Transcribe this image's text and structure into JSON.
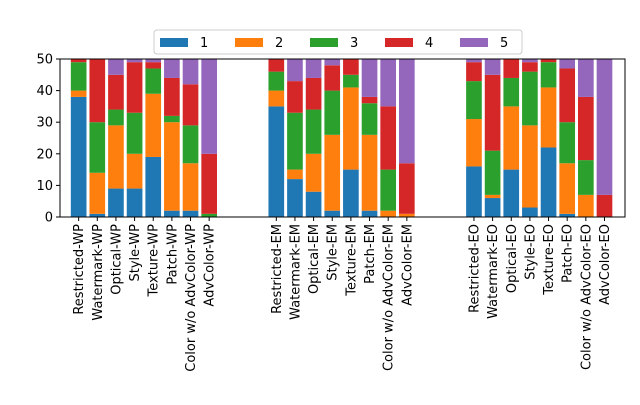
{
  "chart_data": {
    "type": "bar",
    "stacked": true,
    "title": "",
    "xlabel": "",
    "ylabel": "",
    "ylim": [
      0,
      50
    ],
    "yticks": [
      0,
      10,
      20,
      30,
      40,
      50
    ],
    "grid": false,
    "legend_position": "top-center",
    "groups": [
      "WP",
      "EM",
      "EO"
    ],
    "categories": [
      "Restricted-WP",
      "Watermark-WP",
      "Optical-WP",
      "Style-WP",
      "Texture-WP",
      "Patch-WP",
      "Color w/o AdvColor-WP",
      "AdvColor-WP",
      "Restricted-EM",
      "Watermark-EM",
      "Optical-EM",
      "Style-EM",
      "Texture-EM",
      "Patch-EM",
      "Color w/o AdvColor-EM",
      "AdvColor-EM",
      "Restricted-EO",
      "Watermark-EO",
      "Optical-EO",
      "Style-EO",
      "Texture-EO",
      "Patch-EO",
      "Color w/o AdvColor-EO",
      "AdvColor-EO"
    ],
    "series": [
      {
        "name": "1",
        "color": "#1f77b4",
        "values": [
          38,
          1,
          9,
          9,
          19,
          2,
          2,
          0,
          35,
          12,
          8,
          2,
          15,
          2,
          0,
          0,
          16,
          6,
          15,
          3,
          22,
          1,
          0,
          0
        ]
      },
      {
        "name": "2",
        "color": "#ff7f0e",
        "values": [
          2,
          13,
          20,
          11,
          20,
          28,
          15,
          0,
          5,
          3,
          12,
          24,
          26,
          24,
          2,
          1,
          15,
          1,
          20,
          26,
          19,
          16,
          7,
          0
        ]
      },
      {
        "name": "3",
        "color": "#2ca02c",
        "values": [
          9,
          16,
          5,
          13,
          8,
          2,
          12,
          1,
          6,
          18,
          14,
          14,
          4,
          10,
          13,
          0,
          12,
          14,
          9,
          17,
          8,
          13,
          11,
          0
        ]
      },
      {
        "name": "4",
        "color": "#d62728",
        "values": [
          1,
          20,
          11,
          16,
          2,
          12,
          13,
          19,
          4,
          10,
          10,
          8,
          5,
          2,
          20,
          16,
          6,
          24,
          6,
          3,
          1,
          17,
          20,
          7
        ]
      },
      {
        "name": "5",
        "color": "#9467bd",
        "values": [
          0,
          0,
          5,
          1,
          1,
          6,
          8,
          30,
          0,
          7,
          6,
          2,
          0,
          12,
          15,
          33,
          1,
          5,
          0,
          1,
          0,
          3,
          12,
          43
        ]
      }
    ]
  }
}
